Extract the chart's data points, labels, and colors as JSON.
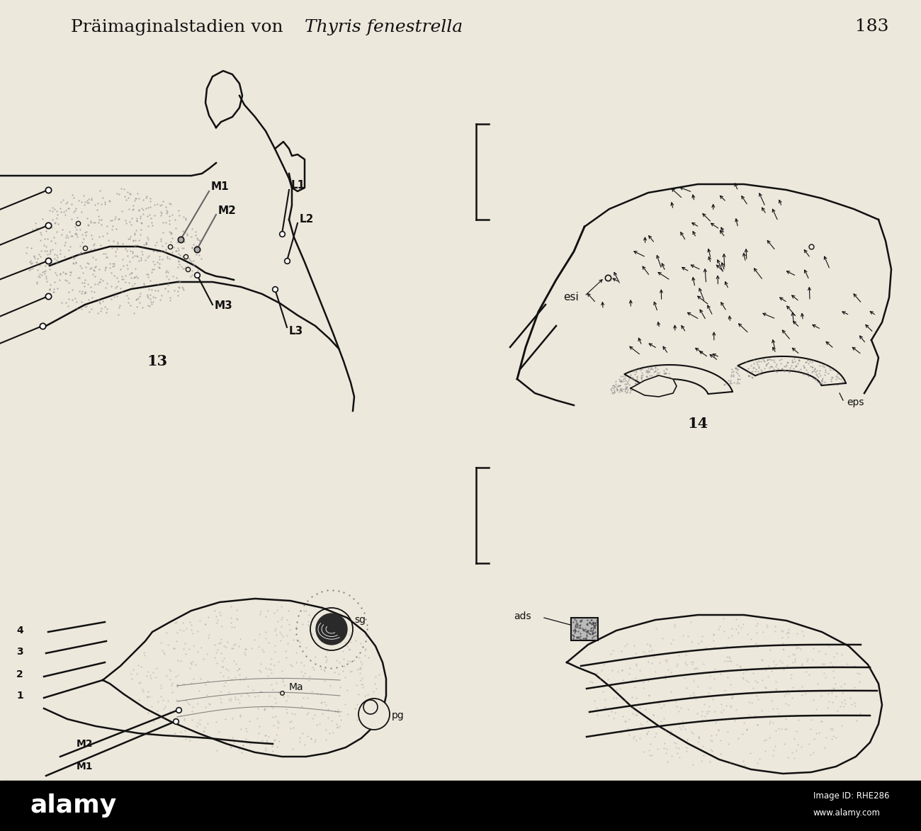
{
  "background_color": "#ede8dc",
  "title_normal": "Präimaginalstadien von ",
  "title_italic": "Thyris fenestrella",
  "page_number": "183",
  "line_color": "#111111",
  "title_fontsize": 18,
  "label_fontsize": 10,
  "fig_label_fontsize": 15,
  "alamy_text": "alamy",
  "alamy_id": "Image ID: RHE286",
  "alamy_url": "www.alamy.com"
}
